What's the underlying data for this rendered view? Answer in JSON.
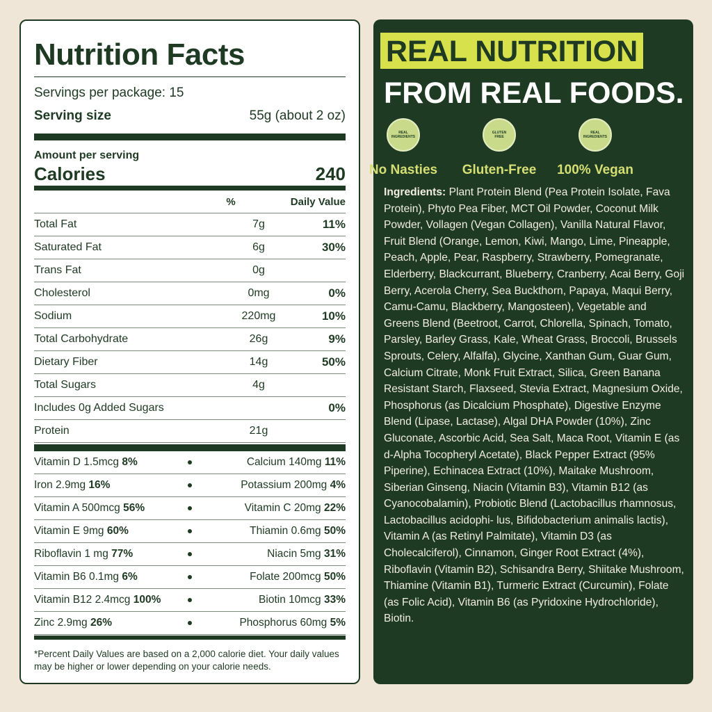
{
  "nutrition": {
    "title": "Nutrition Facts",
    "servings": "Servings per package: 15",
    "serving_size_label": "Serving size",
    "serving_size": "55g (about 2 oz)",
    "amount_per_serving": "Amount per serving",
    "calories_label": "Calories",
    "calories": 240,
    "header_pct": "%",
    "header_dv": "Daily Value",
    "rows": [
      {
        "name": "Total Fat",
        "amount": "7g",
        "dv": "11%"
      },
      {
        "name": "Saturated Fat",
        "amount": "6g",
        "dv": "30%"
      },
      {
        "name": "Trans Fat",
        "amount": "0g"
      },
      {
        "name": "Cholesterol",
        "amount": "0mg",
        "dv": "0%"
      },
      {
        "name": "Sodium",
        "amount": "220mg",
        "dv": "10%"
      },
      {
        "name": "Total Carbohydrate",
        "amount": "26g",
        "dv": "9%"
      },
      {
        "name": "Dietary Fiber",
        "amount": "14g",
        "dv": "50%"
      },
      {
        "name": "Total Sugars",
        "amount": "4g"
      },
      {
        "name": "Includes 0g Added Sugars",
        "dv": "0%"
      },
      {
        "name": "Protein",
        "amount": "21g"
      }
    ],
    "vitamins": [
      {
        "left": {
          "name": "Vitamin D 1.5mcg",
          "dv": "8%"
        },
        "right": {
          "name": "Calcium 140mg",
          "dv": "11%"
        }
      },
      {
        "left": {
          "name": "Iron 2.9mg",
          "dv": "16%"
        },
        "right": {
          "name": "Potassium 200mg",
          "dv": "4%"
        }
      },
      {
        "left": {
          "name": "Vitamin A 500mcg",
          "dv": "56%"
        },
        "right": {
          "name": "Vitamin C 20mg",
          "dv": "22%"
        }
      },
      {
        "left": {
          "name": "Vitamin E 9mg",
          "dv": "60%"
        },
        "right": {
          "name": "Thiamin 0.6mg",
          "dv": "50%"
        }
      },
      {
        "left": {
          "name": "Riboflavin 1 mg",
          "dv": "77%"
        },
        "right": {
          "name": "Niacin 5mg",
          "dv": "31%"
        }
      },
      {
        "left": {
          "name": "Vitamin B6 0.1mg",
          "dv": "6%"
        },
        "right": {
          "name": "Folate 200mcg",
          "dv": "50%"
        }
      },
      {
        "left": {
          "name": "Vitamin B12 2.4mcg",
          "dv": "100%"
        },
        "right": {
          "name": "Biotin 10mcg",
          "dv": "33%"
        }
      },
      {
        "left": {
          "name": "Zinc 2.9mg",
          "dv": "26%"
        },
        "right": {
          "name": "Phosphorus 60mg",
          "dv": "5%"
        }
      }
    ],
    "footnote": "*Percent Daily Values are based on a 2,000 calorie diet. Your daily values may be higher or lower depending on your calorie needs."
  },
  "promo": {
    "headline_1": "REAL NUTRITION",
    "headline_2": "FROM REAL FOODS.",
    "badges": [
      {
        "icon_text": "REAL INGREDIENTS",
        "label": "No Nasties"
      },
      {
        "icon_text": "GLUTEN FREE",
        "label": "Gluten-Free"
      },
      {
        "icon_text": "REAL INGREDIENTS",
        "label": "100% Vegan"
      }
    ],
    "ingredients_label": "Ingredients:",
    "ingredients": "Plant Protein Blend (Pea Protein Isolate, Fava Protein), Phyto Pea Fiber, MCT Oil Powder, Coconut Milk Powder, Vollagen (Vegan Collagen), Vanilla Natural Flavor, Fruit Blend (Orange, Lemon, Kiwi, Mango, Lime, Pineapple, Peach, Apple, Pear, Raspberry, Strawberry, Pomegranate, Elderberry, Blackcurrant, Blueberry, Cranberry, Acai Berry, Goji Berry, Acerola Cherry, Sea Buckthorn, Papaya, Maqui Berry, Camu-Camu, Blackberry, Mangosteen), Vegetable and Greens Blend (Beetroot, Carrot, Chlorella, Spinach, Tomato, Parsley, Barley Grass, Kale, Wheat Grass, Broccoli, Brussels Sprouts, Celery, Alfalfa), Glycine, Xanthan Gum, Guar Gum, Calcium Citrate, Monk Fruit Extract, Silica, Green Banana Resistant Starch, Flaxseed, Stevia Extract, Magnesium Oxide, Phosphorus (as Dicalcium Phosphate), Digestive Enzyme Blend (Lipase, Lactase), Algal DHA Powder (10%), Zinc Gluconate, Ascorbic Acid, Sea Salt, Maca Root, Vitamin E (as d-Alpha Tocopheryl Acetate), Black Pepper Extract (95% Piperine), Echinacea Extract (10%), Maitake Mushroom, Siberian Ginseng, Niacin (Vitamin B3), Vitamin B12 (as Cyanocobalamin), Probiotic Blend (Lactobacillus rhamnosus, Lactobacillus acidophi- lus, Bifidobacterium animalis lactis), Vitamin A (as Retinyl Palmitate), Vitamin D3 (as Cholecalciferol), Cinnamon, Ginger Root Extract (4%), Riboflavin (Vitamin B2), Schisandra Berry, Shiitake Mushroom, Thiamine (Vitamin B1), Turmeric Extract (Curcumin), Folate (as Folic Acid), Vitamin B6 (as Pyridoxine Hydrochloride), Biotin."
  }
}
